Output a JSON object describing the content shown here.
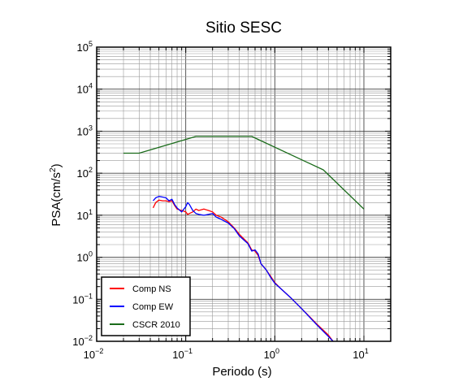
{
  "chart_data": {
    "type": "line",
    "title": "Sitio SESC",
    "xlabel": "Periodo (s)",
    "ylabel_base": "PSA(cm/s",
    "ylabel_exp": "2",
    "ylabel_close": ")",
    "xscale": "log",
    "yscale": "log",
    "xlim": [
      0.01,
      20
    ],
    "ylim": [
      0.01,
      100000
    ],
    "grid": true,
    "legend_position": "bottom-left",
    "x_ticks": [
      {
        "base": "10",
        "exp": "−2",
        "value": 0.01
      },
      {
        "base": "10",
        "exp": "−1",
        "value": 0.1
      },
      {
        "base": "10",
        "exp": "0",
        "value": 1
      },
      {
        "base": "10",
        "exp": "1",
        "value": 10
      }
    ],
    "y_ticks": [
      {
        "base": "10",
        "exp": "−2",
        "value": 0.01
      },
      {
        "base": "10",
        "exp": "−1",
        "value": 0.1
      },
      {
        "base": "10",
        "exp": "0",
        "value": 1
      },
      {
        "base": "10",
        "exp": "1",
        "value": 10
      },
      {
        "base": "10",
        "exp": "2",
        "value": 100
      },
      {
        "base": "10",
        "exp": "3",
        "value": 1000
      },
      {
        "base": "10",
        "exp": "4",
        "value": 10000
      },
      {
        "base": "10",
        "exp": "5",
        "value": 100000
      }
    ],
    "series": [
      {
        "name": "Comp NS",
        "color": "#ff0000",
        "points": [
          [
            0.043,
            15
          ],
          [
            0.046,
            20
          ],
          [
            0.05,
            23
          ],
          [
            0.055,
            22
          ],
          [
            0.06,
            22
          ],
          [
            0.065,
            21
          ],
          [
            0.07,
            22
          ],
          [
            0.075,
            17
          ],
          [
            0.08,
            14
          ],
          [
            0.09,
            13
          ],
          [
            0.1,
            12
          ],
          [
            0.105,
            10.5
          ],
          [
            0.11,
            11
          ],
          [
            0.12,
            12
          ],
          [
            0.13,
            14
          ],
          [
            0.14,
            13
          ],
          [
            0.16,
            14
          ],
          [
            0.18,
            13
          ],
          [
            0.2,
            12
          ],
          [
            0.22,
            10
          ],
          [
            0.25,
            9
          ],
          [
            0.3,
            7
          ],
          [
            0.35,
            5
          ],
          [
            0.4,
            3.5
          ],
          [
            0.5,
            2.2
          ],
          [
            0.55,
            1.5
          ],
          [
            0.6,
            1.4
          ],
          [
            0.65,
            1.1
          ],
          [
            0.7,
            0.7
          ],
          [
            0.8,
            0.5
          ],
          [
            0.9,
            0.35
          ],
          [
            1,
            0.25
          ],
          [
            1.2,
            0.17
          ],
          [
            1.5,
            0.11
          ],
          [
            2,
            0.06
          ],
          [
            2.5,
            0.037
          ],
          [
            3,
            0.025
          ],
          [
            4,
            0.014
          ],
          [
            4.5,
            0.01
          ]
        ]
      },
      {
        "name": "Comp EW",
        "color": "#0000ff",
        "points": [
          [
            0.043,
            22
          ],
          [
            0.046,
            26
          ],
          [
            0.05,
            28
          ],
          [
            0.055,
            27
          ],
          [
            0.06,
            26
          ],
          [
            0.065,
            22
          ],
          [
            0.07,
            24
          ],
          [
            0.075,
            18
          ],
          [
            0.08,
            15
          ],
          [
            0.09,
            12
          ],
          [
            0.1,
            16
          ],
          [
            0.105,
            20
          ],
          [
            0.11,
            18
          ],
          [
            0.12,
            13
          ],
          [
            0.13,
            11
          ],
          [
            0.14,
            10.5
          ],
          [
            0.16,
            10
          ],
          [
            0.18,
            10.5
          ],
          [
            0.2,
            11
          ],
          [
            0.22,
            9
          ],
          [
            0.25,
            8
          ],
          [
            0.3,
            6.5
          ],
          [
            0.35,
            4.8
          ],
          [
            0.4,
            3.2
          ],
          [
            0.5,
            2.1
          ],
          [
            0.55,
            1.4
          ],
          [
            0.6,
            1.5
          ],
          [
            0.65,
            1.2
          ],
          [
            0.7,
            0.7
          ],
          [
            0.8,
            0.5
          ],
          [
            0.9,
            0.33
          ],
          [
            1,
            0.24
          ],
          [
            1.2,
            0.17
          ],
          [
            1.5,
            0.11
          ],
          [
            2,
            0.06
          ],
          [
            2.5,
            0.036
          ],
          [
            3,
            0.024
          ],
          [
            4,
            0.013
          ],
          [
            4.5,
            0.01
          ]
        ]
      },
      {
        "name": "CSCR 2010",
        "color": "#1a6b1a",
        "points": [
          [
            0.02,
            300
          ],
          [
            0.03,
            300
          ],
          [
            0.13,
            750
          ],
          [
            0.55,
            750
          ],
          [
            3.5,
            120
          ],
          [
            10,
            14
          ]
        ]
      }
    ]
  }
}
